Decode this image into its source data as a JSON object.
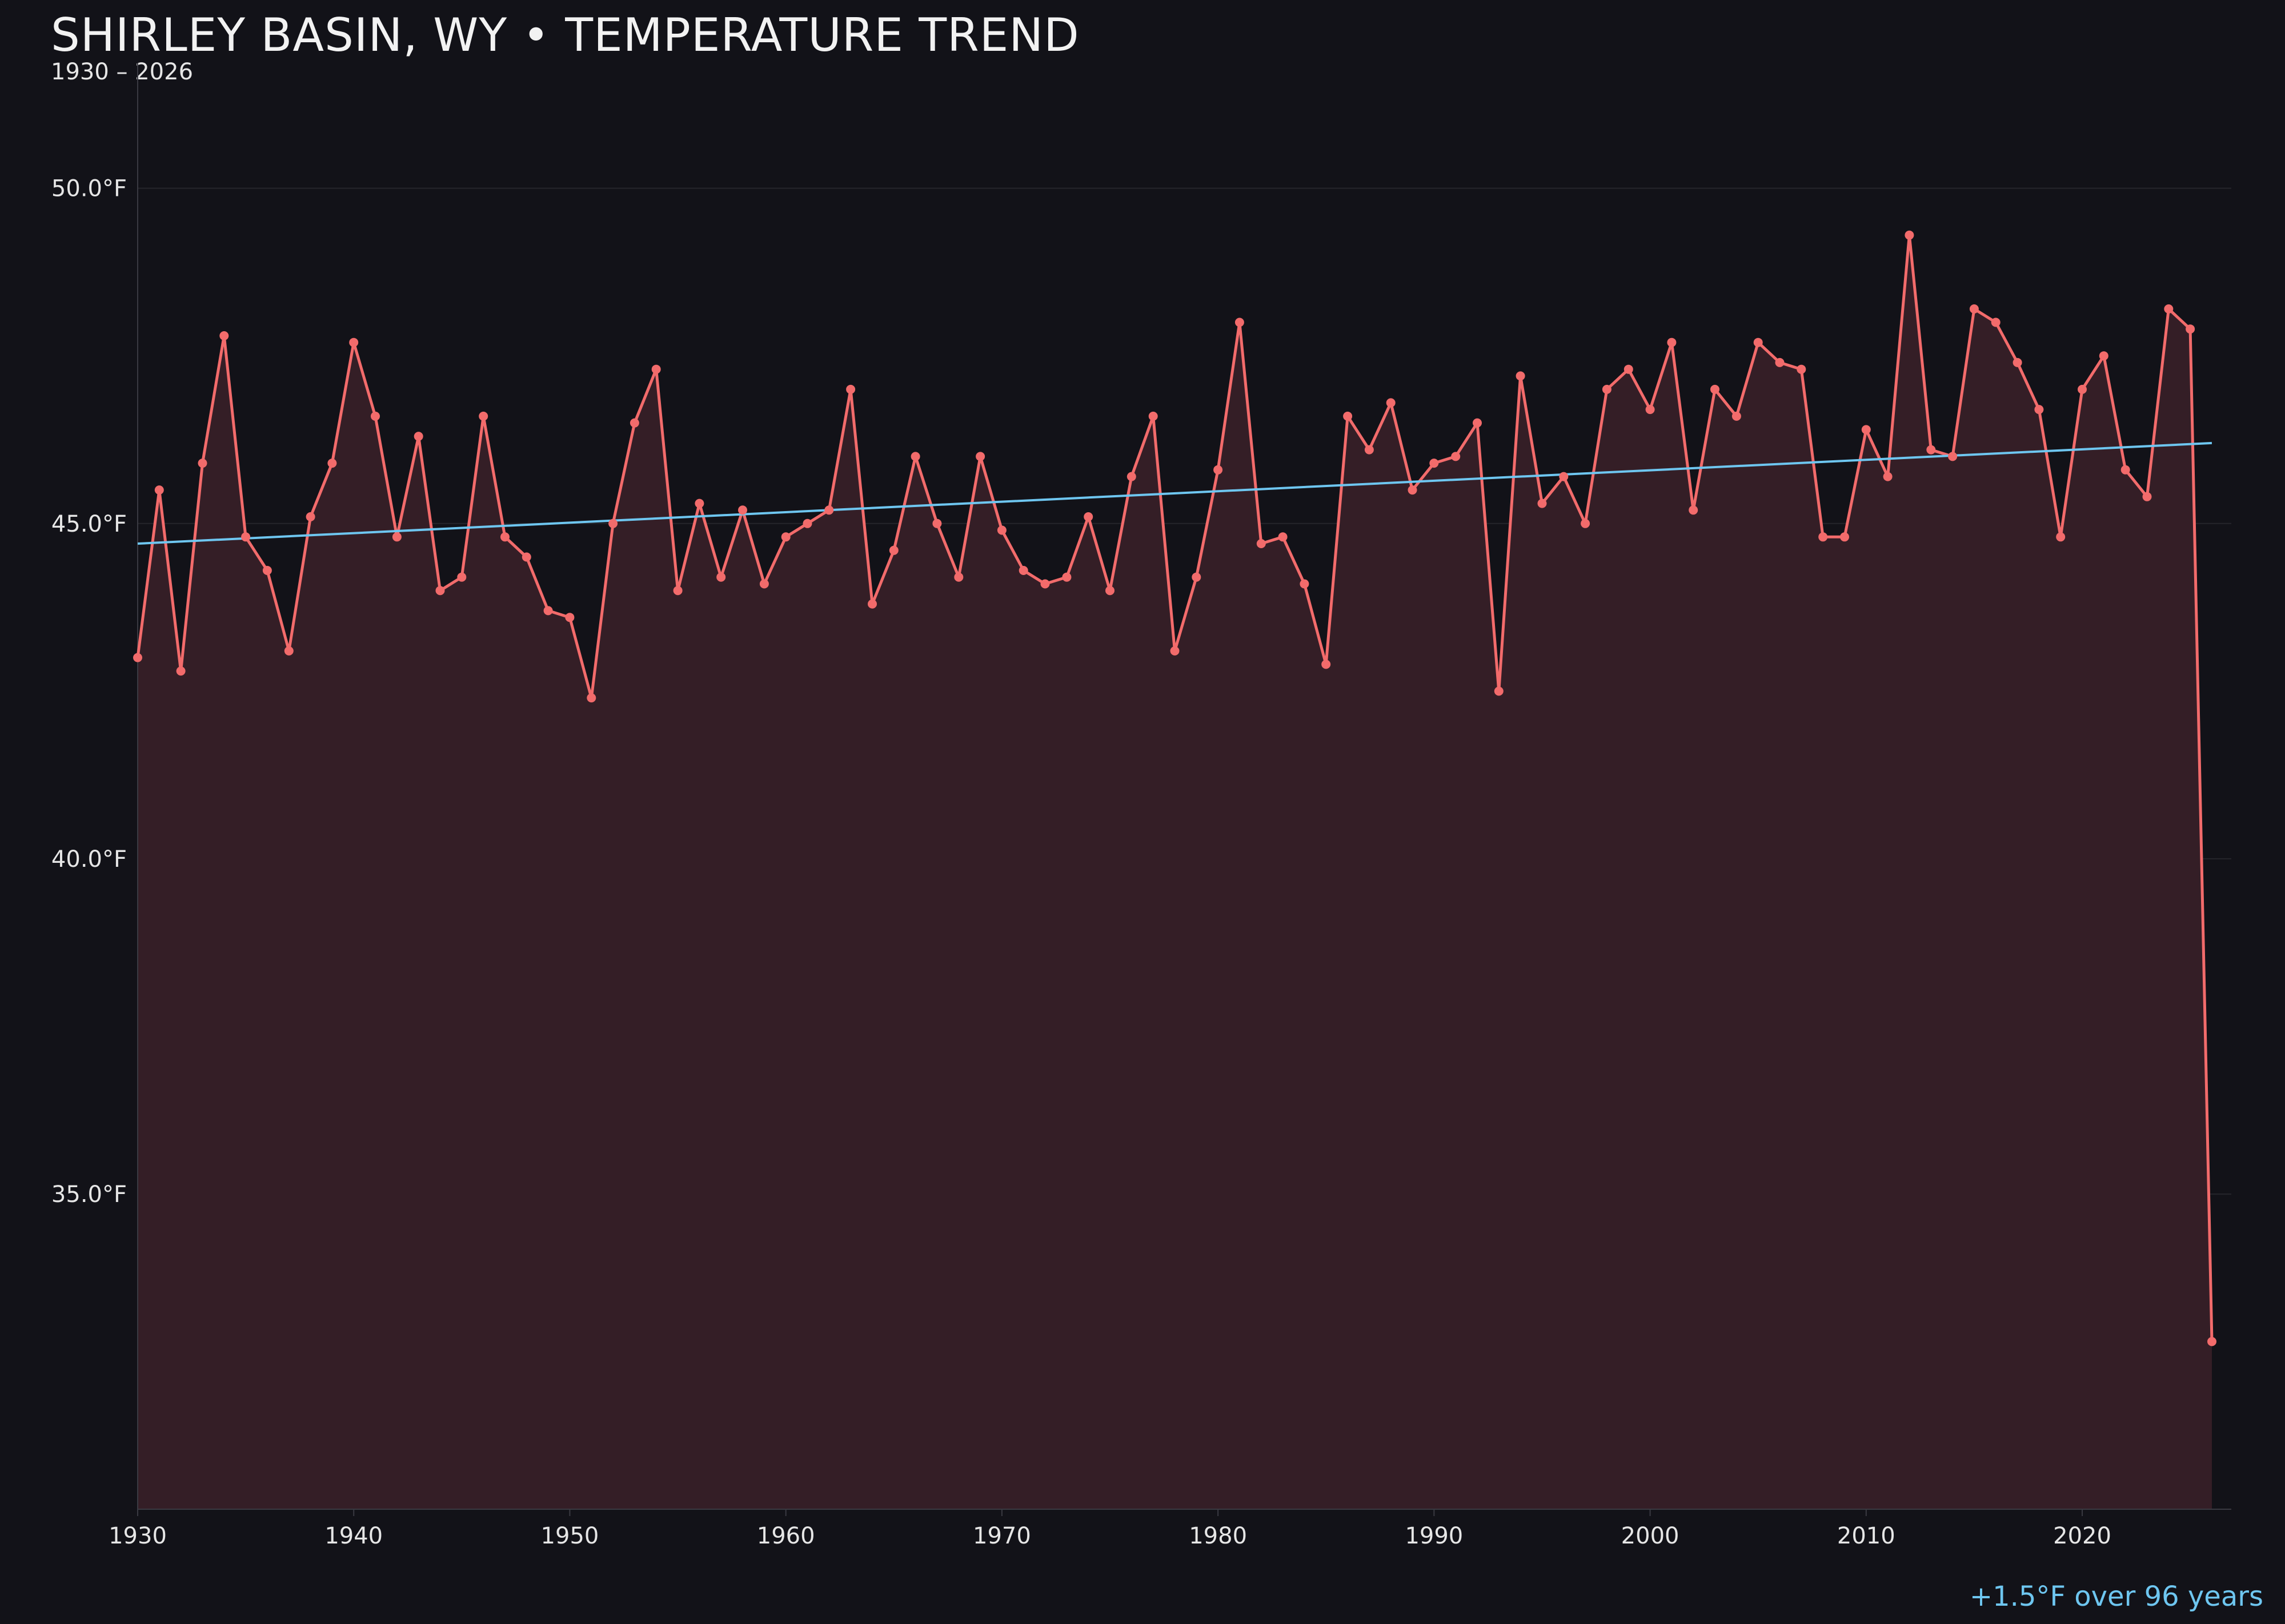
{
  "chart_data": {
    "type": "line",
    "title": "SHIRLEY BASIN, WY • TEMPERATURE TREND",
    "subtitle": "1930 – 2026",
    "xlabel": "",
    "ylabel": "",
    "xlim": [
      1930,
      2026.9
    ],
    "ylim": [
      30.3,
      51.7
    ],
    "x_ticks": [
      1930,
      1940,
      1950,
      1960,
      1970,
      1980,
      1990,
      2000,
      2010,
      2020
    ],
    "y_ticks": [
      35.0,
      40.0,
      45.0,
      50.0
    ],
    "y_tick_labels": [
      "35.0°F",
      "40.0°F",
      "45.0°F",
      "50.0°F"
    ],
    "grid": "horizontal",
    "colors": {
      "background": "#121218",
      "series_line": "#f26b6b",
      "area_fill": "#341e26",
      "trend_line": "#6ec6f0",
      "grid": "#25252b",
      "axis": "#3a3a42",
      "text": "#e6e6e6"
    },
    "series": [
      {
        "x": [
          1930,
          1931,
          1932,
          1933,
          1934,
          1935,
          1936,
          1937,
          1938,
          1939,
          1940,
          1941,
          1942,
          1943,
          1944,
          1945,
          1946,
          1947,
          1948,
          1949,
          1950,
          1951,
          1952,
          1953,
          1954,
          1955,
          1956,
          1957,
          1958,
          1959,
          1960,
          1961,
          1962,
          1963,
          1964,
          1965,
          1966,
          1967,
          1968,
          1969,
          1970,
          1971,
          1972,
          1973,
          1974,
          1975,
          1976,
          1977,
          1978,
          1979,
          1980,
          1981,
          1982,
          1983,
          1984,
          1985,
          1986,
          1987,
          1988,
          1989,
          1990,
          1991,
          1992,
          1993,
          1994,
          1995,
          1996,
          1997,
          1998,
          1999,
          2000,
          2001,
          2002,
          2003,
          2004,
          2005,
          2006,
          2007,
          2008,
          2009,
          2010,
          2011,
          2012,
          2013,
          2014,
          2015,
          2016,
          2017,
          2018,
          2019,
          2020,
          2021,
          2022,
          2023,
          2024,
          2025,
          2026
        ],
        "values": [
          43.0,
          45.5,
          42.8,
          45.9,
          47.8,
          44.8,
          44.3,
          43.1,
          45.1,
          45.9,
          47.7,
          46.6,
          44.8,
          46.3,
          44.0,
          44.2,
          46.6,
          44.8,
          44.5,
          43.7,
          43.6,
          42.4,
          45.0,
          46.5,
          47.3,
          44.0,
          45.3,
          44.2,
          45.2,
          44.1,
          44.8,
          45.0,
          45.2,
          47.0,
          43.8,
          44.6,
          46.0,
          45.0,
          44.2,
          46.0,
          44.9,
          44.3,
          44.1,
          44.2,
          45.1,
          44.0,
          45.7,
          46.6,
          43.1,
          44.2,
          45.8,
          48.0,
          44.7,
          44.8,
          44.1,
          42.9,
          46.6,
          46.1,
          46.8,
          45.5,
          45.9,
          46.0,
          46.5,
          42.5,
          47.2,
          45.3,
          45.7,
          45.0,
          47.0,
          47.3,
          46.7,
          47.7,
          45.2,
          47.0,
          46.6,
          47.7,
          47.4,
          47.3,
          44.8,
          44.8,
          46.4,
          45.7,
          49.3,
          46.1,
          46.0,
          48.2,
          48.0,
          47.4,
          46.7,
          44.8,
          47.0,
          47.5,
          45.8,
          45.4,
          48.2,
          47.9,
          32.8
        ]
      }
    ],
    "trend": {
      "x": [
        1930,
        2026
      ],
      "values": [
        44.7,
        46.2
      ]
    },
    "annotation": "+1.5°F over 96 years"
  }
}
